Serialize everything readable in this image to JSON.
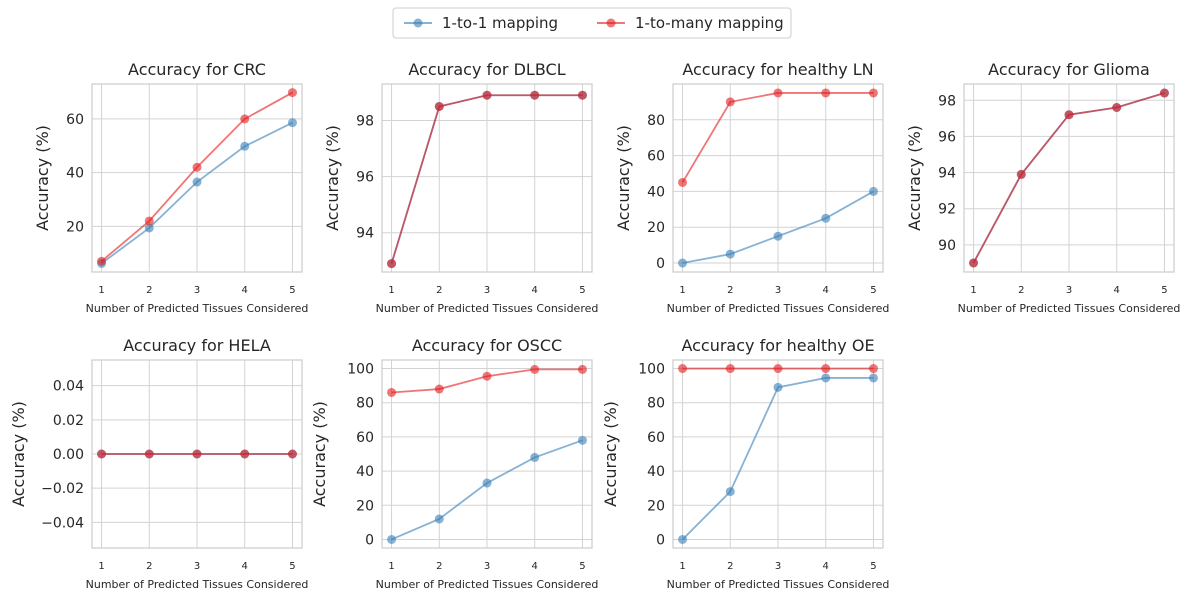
{
  "legend": {
    "entries": [
      {
        "label": "1-to-1 mapping",
        "color": "#377eb8"
      },
      {
        "label": "1-to-many mapping",
        "color": "#e41a1c"
      }
    ]
  },
  "chart_data": [
    {
      "type": "line",
      "title": "Accuracy for CRC",
      "xlabel": "Number of Predicted Tissues Considered",
      "ylabel": "Accuracy (%)",
      "x": [
        1,
        2,
        3,
        4,
        5
      ],
      "ylim": [
        3,
        73
      ],
      "yticks": [
        20,
        40,
        60
      ],
      "ytick_labels": [
        "20",
        "40",
        "60"
      ],
      "series": [
        {
          "name": "1-to-1 mapping",
          "values": [
            6.2,
            19.4,
            36.5,
            49.8,
            58.6
          ]
        },
        {
          "name": "1-to-many mapping",
          "values": [
            7.0,
            22.0,
            42.0,
            60.0,
            69.8
          ]
        }
      ]
    },
    {
      "type": "line",
      "title": "Accuracy for DLBCL",
      "xlabel": "Number of Predicted Tissues Considered",
      "ylabel": "Accuracy (%)",
      "x": [
        1,
        2,
        3,
        4,
        5
      ],
      "ylim": [
        92.6,
        99.3
      ],
      "yticks": [
        94,
        96,
        98
      ],
      "ytick_labels": [
        "94",
        "96",
        "98"
      ],
      "series": [
        {
          "name": "1-to-1 mapping",
          "values": [
            92.9,
            98.5,
            98.9,
            98.9,
            98.9
          ]
        },
        {
          "name": "1-to-many mapping",
          "values": [
            92.9,
            98.5,
            98.9,
            98.9,
            98.9
          ]
        }
      ]
    },
    {
      "type": "line",
      "title": "Accuracy for healthy LN",
      "xlabel": "Number of Predicted Tissues Considered",
      "ylabel": "Accuracy (%)",
      "x": [
        1,
        2,
        3,
        4,
        5
      ],
      "ylim": [
        -5,
        100
      ],
      "yticks": [
        0,
        20,
        40,
        60,
        80
      ],
      "ytick_labels": [
        "0",
        "20",
        "40",
        "60",
        "80"
      ],
      "series": [
        {
          "name": "1-to-1 mapping",
          "values": [
            0,
            5,
            15,
            25,
            40
          ]
        },
        {
          "name": "1-to-many mapping",
          "values": [
            45,
            90,
            95,
            95,
            95
          ]
        }
      ]
    },
    {
      "type": "line",
      "title": "Accuracy for Glioma",
      "xlabel": "Number of Predicted Tissues Considered",
      "ylabel": "Accuracy (%)",
      "x": [
        1,
        2,
        3,
        4,
        5
      ],
      "ylim": [
        88.5,
        98.9
      ],
      "yticks": [
        90,
        92,
        94,
        96,
        98
      ],
      "ytick_labels": [
        "90",
        "92",
        "94",
        "96",
        "98"
      ],
      "series": [
        {
          "name": "1-to-1 mapping",
          "values": [
            89.0,
            93.9,
            97.2,
            97.6,
            98.4
          ]
        },
        {
          "name": "1-to-many mapping",
          "values": [
            89.0,
            93.9,
            97.2,
            97.6,
            98.4
          ]
        }
      ]
    },
    {
      "type": "line",
      "title": "Accuracy for HELA",
      "xlabel": "Number of Predicted Tissues Considered",
      "ylabel": "Accuracy (%)",
      "x": [
        1,
        2,
        3,
        4,
        5
      ],
      "ylim": [
        -0.055,
        0.055
      ],
      "yticks": [
        -0.04,
        -0.02,
        0.0,
        0.02,
        0.04
      ],
      "ytick_labels": [
        "−0.04",
        "−0.02",
        "0.00",
        "0.02",
        "0.04"
      ],
      "series": [
        {
          "name": "1-to-1 mapping",
          "values": [
            0,
            0,
            0,
            0,
            0
          ]
        },
        {
          "name": "1-to-many mapping",
          "values": [
            0,
            0,
            0,
            0,
            0
          ]
        }
      ]
    },
    {
      "type": "line",
      "title": "Accuracy for OSCC",
      "xlabel": "Number of Predicted Tissues Considered",
      "ylabel": "Accuracy (%)",
      "x": [
        1,
        2,
        3,
        4,
        5
      ],
      "ylim": [
        -5,
        105
      ],
      "yticks": [
        0,
        20,
        40,
        60,
        80,
        100
      ],
      "ytick_labels": [
        "0",
        "20",
        "40",
        "60",
        "80",
        "100"
      ],
      "series": [
        {
          "name": "1-to-1 mapping",
          "values": [
            0,
            12,
            33,
            48,
            58
          ]
        },
        {
          "name": "1-to-many mapping",
          "values": [
            86,
            88,
            95.5,
            99.5,
            99.5
          ]
        }
      ]
    },
    {
      "type": "line",
      "title": "Accuracy for healthy OE",
      "xlabel": "Number of Predicted Tissues Considered",
      "ylabel": "Accuracy (%)",
      "x": [
        1,
        2,
        3,
        4,
        5
      ],
      "ylim": [
        -5,
        105
      ],
      "yticks": [
        0,
        20,
        40,
        60,
        80,
        100
      ],
      "ytick_labels": [
        "0",
        "20",
        "40",
        "60",
        "80",
        "100"
      ],
      "series": [
        {
          "name": "1-to-1 mapping",
          "values": [
            0,
            28,
            89,
            94.5,
            94.5
          ]
        },
        {
          "name": "1-to-many mapping",
          "values": [
            100,
            100,
            100,
            100,
            100
          ]
        }
      ]
    }
  ]
}
